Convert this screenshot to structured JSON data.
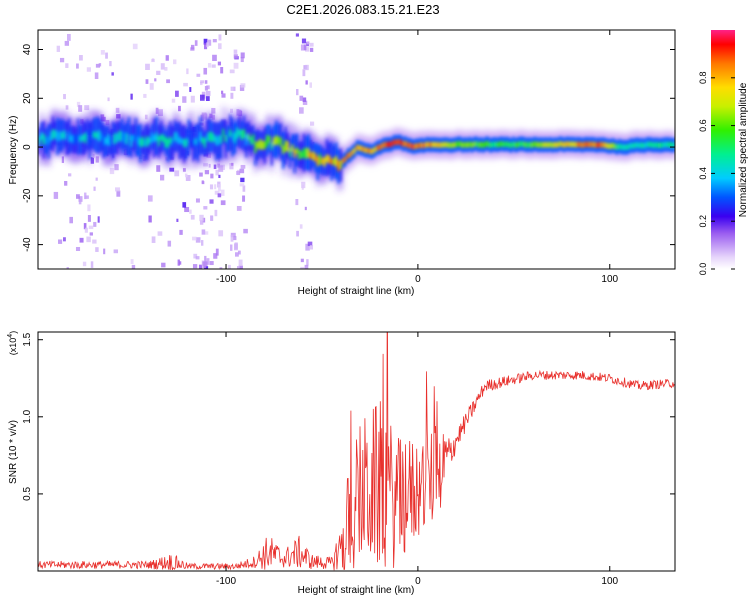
{
  "title": "C2E1.2026.083.15.21.E23",
  "chart_data": [
    {
      "type": "heatmap",
      "xlabel": "Height of straight line (km)",
      "ylabel": "Frequency (Hz)",
      "xlim": [
        -198,
        134
      ],
      "ylim": [
        -50,
        48
      ],
      "xticks": [
        "-100",
        "0",
        "100"
      ],
      "xtick_values": [
        -100,
        0,
        100
      ],
      "yticks": [
        "-40",
        "-20",
        "0",
        "20",
        "40"
      ],
      "ytick_values": [
        -40,
        -20,
        0,
        20,
        40
      ],
      "colorbar": {
        "label": "Normalized spectral amplitude",
        "ticks": [
          "0.0",
          "0.2",
          "0.4",
          "0.6",
          "0.8"
        ],
        "tick_values": [
          0.0,
          0.2,
          0.4,
          0.6,
          0.8
        ],
        "range": [
          0,
          1
        ]
      },
      "ridge": [
        {
          "x": -198,
          "y": 4,
          "amp": 0.45
        },
        {
          "x": -170,
          "y": 4,
          "amp": 0.45
        },
        {
          "x": -140,
          "y": 3,
          "amp": 0.45
        },
        {
          "x": -110,
          "y": 3,
          "amp": 0.45
        },
        {
          "x": -100,
          "y": 5,
          "amp": 0.5
        },
        {
          "x": -92,
          "y": 5,
          "amp": 0.5
        },
        {
          "x": -85,
          "y": 1,
          "amp": 0.6
        },
        {
          "x": -75,
          "y": 2,
          "amp": 0.7
        },
        {
          "x": -65,
          "y": -2,
          "amp": 0.8
        },
        {
          "x": -55,
          "y": -4,
          "amp": 0.9
        },
        {
          "x": -45,
          "y": -7,
          "amp": 0.9
        },
        {
          "x": -40,
          "y": -6,
          "amp": 0.85
        },
        {
          "x": -32,
          "y": 0,
          "amp": 0.85
        },
        {
          "x": -25,
          "y": -2,
          "amp": 0.85
        },
        {
          "x": -18,
          "y": 1,
          "amp": 0.9
        },
        {
          "x": -10,
          "y": 2,
          "amp": 0.95
        },
        {
          "x": -3,
          "y": 0,
          "amp": 0.95
        },
        {
          "x": 5,
          "y": 1,
          "amp": 0.9
        },
        {
          "x": 15,
          "y": 1,
          "amp": 0.7
        },
        {
          "x": 40,
          "y": 1,
          "amp": 0.55
        },
        {
          "x": 60,
          "y": 1,
          "amp": 0.6
        },
        {
          "x": 80,
          "y": 1,
          "amp": 0.85
        },
        {
          "x": 95,
          "y": 1,
          "amp": 0.9
        },
        {
          "x": 105,
          "y": 0,
          "amp": 0.5
        },
        {
          "x": 120,
          "y": 1,
          "amp": 0.5
        },
        {
          "x": 134,
          "y": 1,
          "amp": 0.5
        }
      ]
    },
    {
      "type": "line",
      "xlabel": "Height of straight line (km)",
      "ylabel": "SNR (10 * v/v)",
      "y_multiplier": "(x10",
      "y_multiplier_exp": "4",
      "xlim": [
        -198,
        134
      ],
      "ylim": [
        0,
        1.55
      ],
      "xticks": [
        "-100",
        "0",
        "100"
      ],
      "xtick_values": [
        -100,
        0,
        100
      ],
      "yticks": [
        "0.5",
        "1.0",
        "1.5"
      ],
      "ytick_values": [
        0.5,
        1.0,
        1.5
      ],
      "line_color": "#e8302c",
      "envelope": [
        {
          "x": -198,
          "base": 0.04,
          "amp": 0.05
        },
        {
          "x": -140,
          "base": 0.04,
          "amp": 0.05
        },
        {
          "x": -128,
          "base": 0.06,
          "amp": 0.12
        },
        {
          "x": -120,
          "base": 0.03,
          "amp": 0.04
        },
        {
          "x": -95,
          "base": 0.03,
          "amp": 0.04
        },
        {
          "x": -85,
          "base": 0.06,
          "amp": 0.08
        },
        {
          "x": -78,
          "base": 0.12,
          "amp": 0.25
        },
        {
          "x": -70,
          "base": 0.08,
          "amp": 0.12
        },
        {
          "x": -62,
          "base": 0.12,
          "amp": 0.22
        },
        {
          "x": -55,
          "base": 0.06,
          "amp": 0.1
        },
        {
          "x": -45,
          "base": 0.05,
          "amp": 0.08
        },
        {
          "x": -36,
          "base": 0.25,
          "amp": 0.55
        },
        {
          "x": -30,
          "base": 0.45,
          "amp": 0.7
        },
        {
          "x": -20,
          "base": 0.5,
          "amp": 0.8
        },
        {
          "x": -10,
          "base": 0.4,
          "amp": 0.6
        },
        {
          "x": 0,
          "base": 0.5,
          "amp": 0.5
        },
        {
          "x": 10,
          "base": 0.6,
          "amp": 0.45
        },
        {
          "x": 20,
          "base": 0.85,
          "amp": 0.15
        },
        {
          "x": 35,
          "base": 1.2,
          "amp": 0.08
        },
        {
          "x": 60,
          "base": 1.27,
          "amp": 0.06
        },
        {
          "x": 85,
          "base": 1.27,
          "amp": 0.06
        },
        {
          "x": 100,
          "base": 1.25,
          "amp": 0.06
        },
        {
          "x": 115,
          "base": 1.2,
          "amp": 0.06
        },
        {
          "x": 134,
          "base": 1.22,
          "amp": 0.06
        }
      ]
    }
  ]
}
